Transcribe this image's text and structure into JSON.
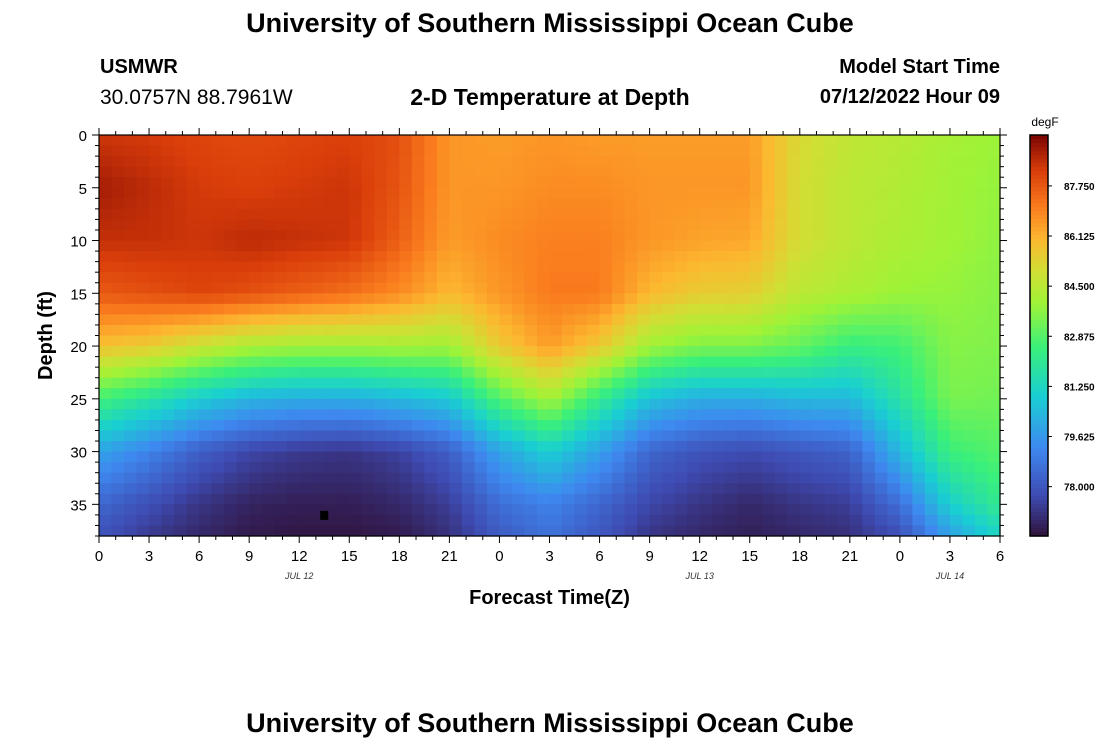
{
  "header": {
    "title": "University of Southern Mississippi Ocean Cube",
    "station_name": "USMWR",
    "station_coords": "30.0757N  88.7961W",
    "plot_title": "2-D Temperature at Depth",
    "start_label": "Model Start Time",
    "start_value": "07/12/2022 Hour 09"
  },
  "footer": {
    "title": "University of Southern Mississippi Ocean Cube"
  },
  "chart_data": {
    "type": "heatmap",
    "xlabel": "Forecast Time(Z)",
    "ylabel": "Depth (ft)",
    "x_range_hours": [
      0,
      54
    ],
    "ylim": [
      0,
      38
    ],
    "x_ticks": [
      {
        "hour": 0,
        "label": "0"
      },
      {
        "hour": 3,
        "label": "3"
      },
      {
        "hour": 6,
        "label": "6"
      },
      {
        "hour": 9,
        "label": "9"
      },
      {
        "hour": 12,
        "label": "12"
      },
      {
        "hour": 15,
        "label": "15"
      },
      {
        "hour": 18,
        "label": "18"
      },
      {
        "hour": 21,
        "label": "21"
      },
      {
        "hour": 24,
        "label": "0"
      },
      {
        "hour": 27,
        "label": "3"
      },
      {
        "hour": 30,
        "label": "6"
      },
      {
        "hour": 33,
        "label": "9"
      },
      {
        "hour": 36,
        "label": "12"
      },
      {
        "hour": 39,
        "label": "15"
      },
      {
        "hour": 42,
        "label": "18"
      },
      {
        "hour": 45,
        "label": "21"
      },
      {
        "hour": 48,
        "label": "0"
      },
      {
        "hour": 51,
        "label": "3"
      },
      {
        "hour": 54,
        "label": "6"
      }
    ],
    "y_ticks": [
      0,
      5,
      10,
      15,
      20,
      25,
      30,
      35
    ],
    "date_labels": [
      {
        "hour": 12,
        "label": "JUL 12"
      },
      {
        "hour": 36,
        "label": "JUL 13"
      },
      {
        "hour": 51,
        "label": "JUL 14"
      }
    ],
    "colorbar": {
      "unit": "degF",
      "min": 76.4,
      "max": 89.4,
      "ticks": [
        "87.750",
        "86.125",
        "84.500",
        "82.875",
        "81.250",
        "79.625",
        "78.000"
      ]
    },
    "depths_ft": [
      0,
      5,
      10,
      15,
      20,
      25,
      30,
      35,
      38
    ],
    "columns": [
      {
        "hour": 0,
        "temps": [
          88.4,
          88.9,
          88.5,
          87.7,
          85.8,
          82.6,
          79.9,
          78.4,
          77.9
        ]
      },
      {
        "hour": 3,
        "temps": [
          88.3,
          88.6,
          88.5,
          87.9,
          85.5,
          81.8,
          79.1,
          77.8,
          77.3
        ]
      },
      {
        "hour": 6,
        "temps": [
          88.1,
          88.3,
          88.4,
          88.1,
          84.8,
          80.9,
          78.2,
          77.2,
          76.9
        ]
      },
      {
        "hour": 9,
        "temps": [
          88.0,
          88.2,
          88.6,
          87.9,
          84.2,
          80.3,
          77.6,
          76.8,
          76.6
        ]
      },
      {
        "hour": 12,
        "temps": [
          88.1,
          88.3,
          88.5,
          87.6,
          84.0,
          80.1,
          77.3,
          76.7,
          76.5
        ]
      },
      {
        "hour": 15,
        "temps": [
          88.2,
          88.4,
          88.4,
          87.3,
          84.0,
          80.1,
          77.2,
          76.7,
          76.5
        ]
      },
      {
        "hour": 18,
        "temps": [
          87.9,
          87.8,
          87.6,
          86.8,
          84.1,
          80.4,
          77.5,
          76.9,
          76.6
        ]
      },
      {
        "hour": 21,
        "temps": [
          86.6,
          86.6,
          86.5,
          86.0,
          84.0,
          80.8,
          78.2,
          77.4,
          77.1
        ]
      },
      {
        "hour": 24,
        "temps": [
          86.5,
          86.6,
          86.8,
          86.6,
          85.6,
          82.8,
          79.9,
          78.6,
          78.1
        ]
      },
      {
        "hour": 27,
        "temps": [
          86.6,
          86.8,
          87.0,
          87.1,
          86.5,
          84.1,
          81.0,
          79.1,
          78.7
        ]
      },
      {
        "hour": 30,
        "temps": [
          86.5,
          86.8,
          87.0,
          87.1,
          85.6,
          82.2,
          79.8,
          78.4,
          78.0
        ]
      },
      {
        "hour": 33,
        "temps": [
          86.5,
          86.6,
          86.6,
          86.0,
          84.0,
          80.6,
          78.4,
          77.6,
          77.2
        ]
      },
      {
        "hour": 36,
        "temps": [
          86.5,
          86.6,
          86.4,
          85.5,
          83.5,
          80.1,
          77.9,
          77.2,
          76.9
        ]
      },
      {
        "hour": 39,
        "temps": [
          86.5,
          86.6,
          86.3,
          85.4,
          83.5,
          80.1,
          77.7,
          76.9,
          76.7
        ]
      },
      {
        "hour": 42,
        "temps": [
          85.1,
          85.0,
          85.0,
          84.5,
          83.1,
          80.4,
          78.0,
          77.2,
          76.9
        ]
      },
      {
        "hour": 45,
        "temps": [
          84.6,
          84.5,
          84.5,
          84.2,
          82.4,
          80.4,
          78.3,
          77.4,
          77.1
        ]
      },
      {
        "hour": 48,
        "temps": [
          84.4,
          84.3,
          84.2,
          83.9,
          82.6,
          81.8,
          80.4,
          78.6,
          77.8
        ]
      },
      {
        "hour": 51,
        "temps": [
          84.1,
          84.0,
          84.0,
          83.8,
          83.6,
          83.4,
          82.5,
          81.0,
          79.8
        ]
      },
      {
        "hour": 54,
        "temps": [
          83.9,
          83.8,
          83.7,
          83.6,
          83.5,
          83.3,
          82.9,
          82.2,
          81.2
        ]
      }
    ],
    "marker": {
      "hour": 13.5,
      "depth_ft": 36
    }
  }
}
